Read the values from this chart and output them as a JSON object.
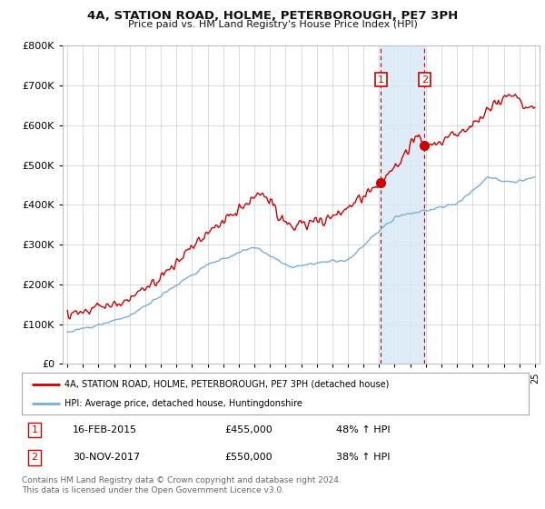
{
  "title": "4A, STATION ROAD, HOLME, PETERBOROUGH, PE7 3PH",
  "subtitle": "Price paid vs. HM Land Registry's House Price Index (HPI)",
  "background_color": "#ffffff",
  "plot_bg_color": "#ffffff",
  "grid_color": "#cccccc",
  "red_line_color": "#cc0000",
  "blue_line_color": "#7aaed6",
  "shade_color": "#daeaf7",
  "sale1_date_num": 2015.12,
  "sale2_date_num": 2017.92,
  "sale1_price": 455000,
  "sale2_price": 550000,
  "legend_line1": "4A, STATION ROAD, HOLME, PETERBOROUGH, PE7 3PH (detached house)",
  "legend_line2": "HPI: Average price, detached house, Huntingdonshire",
  "table_row1": [
    "1",
    "16-FEB-2015",
    "£455,000",
    "48% ↑ HPI"
  ],
  "table_row2": [
    "2",
    "30-NOV-2017",
    "£550,000",
    "38% ↑ HPI"
  ],
  "footnote": "Contains HM Land Registry data © Crown copyright and database right 2024.\nThis data is licensed under the Open Government Licence v3.0.",
  "ylim": [
    0,
    800000
  ],
  "xlim_start": 1994.7,
  "xlim_end": 2025.3
}
